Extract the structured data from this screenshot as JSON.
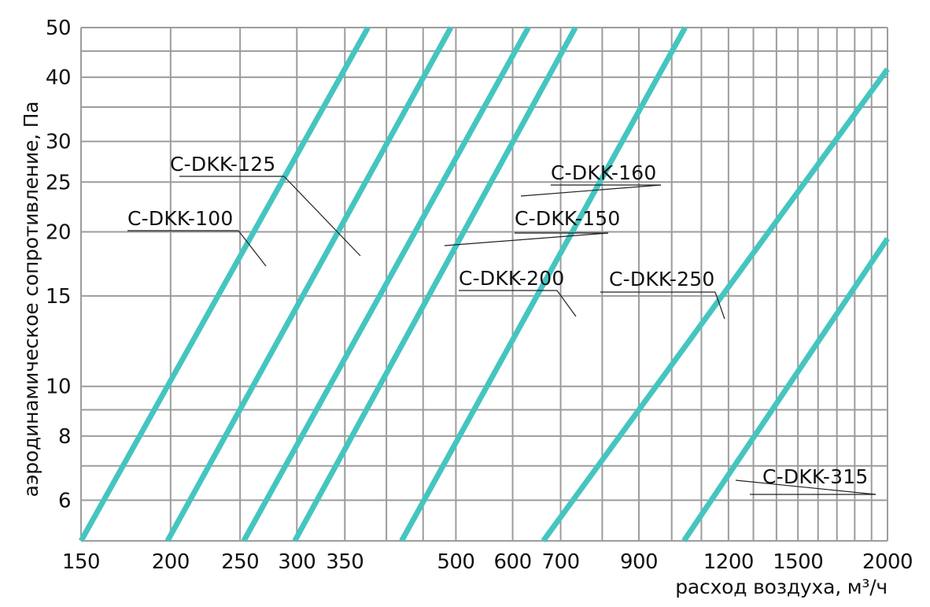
{
  "chart_data": {
    "type": "line",
    "xscale": "log",
    "yscale": "log",
    "xlim": [
      150,
      2000
    ],
    "ylim": [
      5,
      50
    ],
    "xlabel": "расход воздуха, м³/ч",
    "ylabel": "аэродинамическое сопротивление, Па",
    "x_ticks": [
      150,
      200,
      250,
      300,
      350,
      500,
      600,
      700,
      900,
      1200,
      1500,
      2000
    ],
    "x_tick_labels": [
      "150",
      "200",
      "250",
      "300",
      "350",
      "500",
      "600",
      "700",
      "900",
      "1200",
      "1500",
      "2000"
    ],
    "x_grid": [
      150,
      200,
      250,
      300,
      350,
      400,
      450,
      500,
      600,
      700,
      800,
      900,
      1000,
      1100,
      1200,
      1300,
      1400,
      1500,
      1600,
      1700,
      1800,
      1900,
      2000
    ],
    "y_ticks": [
      6,
      8,
      10,
      15,
      20,
      25,
      30,
      40,
      50
    ],
    "y_tick_labels": [
      "6",
      "8",
      "10",
      "15",
      "20",
      "25",
      "30",
      "40",
      "50"
    ],
    "y_grid": [
      5,
      6,
      7,
      8,
      9,
      10,
      15,
      20,
      25,
      30,
      35,
      40,
      45,
      50
    ],
    "grid": true,
    "line_color": "#45c5c0",
    "grid_color": "#9c9c9c",
    "series": [
      {
        "name": "C-DKK-100",
        "x": [
          150,
          377
        ],
        "y": [
          5,
          50
        ]
      },
      {
        "name": "C-DKK-125",
        "x": [
          198,
          492
        ],
        "y": [
          5,
          50
        ]
      },
      {
        "name": "C-DKK-150",
        "x": [
          253,
          631
        ],
        "y": [
          5,
          50
        ]
      },
      {
        "name": "C-DKK-160",
        "x": [
          298,
          734
        ],
        "y": [
          5,
          50
        ]
      },
      {
        "name": "C-DKK-200",
        "x": [
          420,
          1044
        ],
        "y": [
          5,
          50
        ]
      },
      {
        "name": "C-DKK-250",
        "x": [
          662,
          2000
        ],
        "y": [
          5,
          41.5
        ]
      },
      {
        "name": "C-DKK-315",
        "x": [
          1040,
          2000
        ],
        "y": [
          5,
          19.4
        ]
      }
    ],
    "annotations": [
      {
        "series": "C-DKK-125",
        "label": "C-DKK-125"
      },
      {
        "series": "C-DKK-100",
        "label": "C-DKK-100"
      },
      {
        "series": "C-DKK-160",
        "label": "C-DKK-160"
      },
      {
        "series": "C-DKK-150",
        "label": "C-DKK-150"
      },
      {
        "series": "C-DKK-200",
        "label": "C-DKK-200"
      },
      {
        "series": "C-DKK-250",
        "label": "C-DKK-250"
      },
      {
        "series": "C-DKK-315",
        "label": "C-DKK-315"
      }
    ]
  }
}
